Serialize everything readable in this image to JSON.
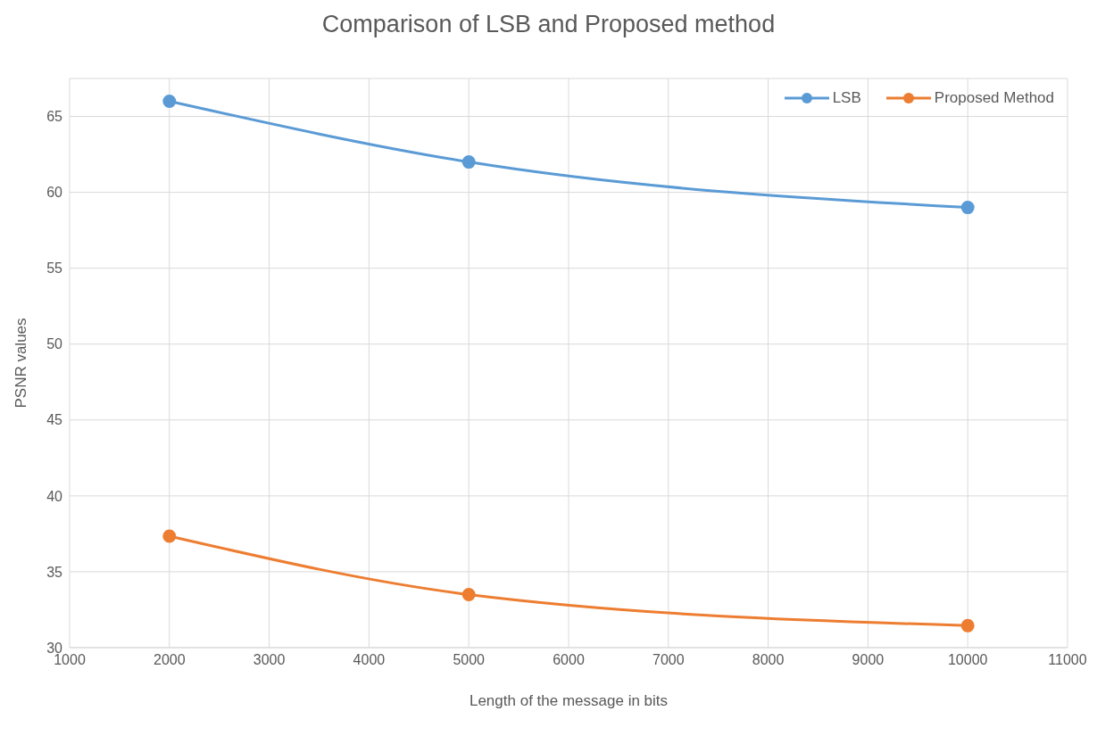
{
  "chart_data": {
    "type": "line",
    "title": "Comparison of LSB and Proposed method",
    "xlabel": "Length of the message in bits",
    "ylabel": "PSNR values",
    "x": [
      2000,
      5000,
      10000
    ],
    "series": [
      {
        "name": "LSB",
        "color": "#5b9bd5",
        "values": [
          66,
          62,
          59
        ]
      },
      {
        "name": "Proposed Method",
        "color": "#ed7d31",
        "values": [
          37.35,
          33.5,
          31.45
        ]
      }
    ],
    "xlim": [
      1000,
      11000
    ],
    "xticks": [
      1000,
      2000,
      3000,
      4000,
      5000,
      6000,
      7000,
      8000,
      9000,
      10000,
      11000
    ],
    "ylim": [
      30,
      67.5
    ],
    "yticks": [
      30,
      35,
      40,
      45,
      50,
      55,
      60,
      65
    ],
    "grid": true,
    "legend": "top right",
    "marker": "circle",
    "line_style": "solid"
  }
}
